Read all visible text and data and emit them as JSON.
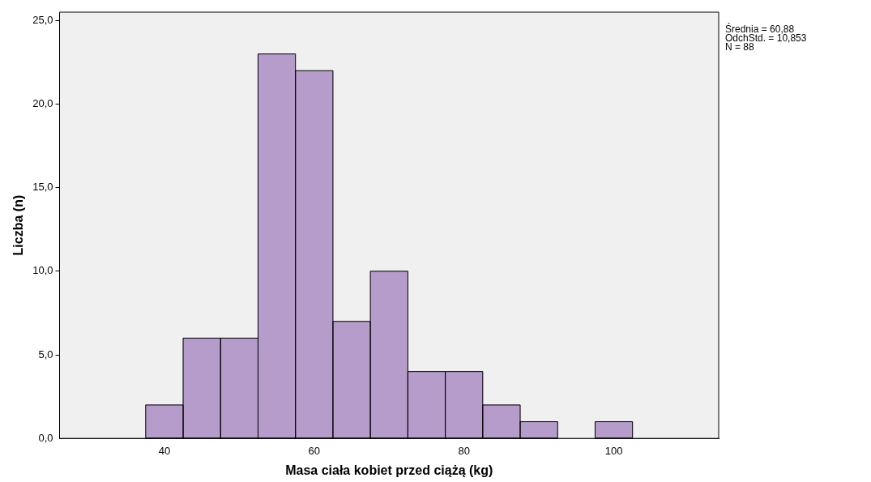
{
  "chart_data": {
    "type": "histogram",
    "xlabel": "Masa ciała kobiet przed ciążą (kg)",
    "ylabel": "Liczba (n)",
    "bins": [
      37.5,
      42.5,
      47.5,
      52.5,
      57.5,
      62.5,
      67.5,
      72.5,
      77.5,
      82.5,
      87.5,
      92.5,
      97.5,
      102.5
    ],
    "values": [
      2,
      6,
      6,
      23,
      22,
      7,
      10,
      4,
      4,
      2,
      1,
      0,
      1
    ],
    "color": "#b59ccb",
    "xlim": [
      26,
      114
    ],
    "xticks": [
      40,
      60,
      80,
      100
    ],
    "ylim": [
      0,
      25.5
    ],
    "yticks": [
      {
        "value": 0,
        "label": "0,0"
      },
      {
        "value": 5,
        "label": "5,0"
      },
      {
        "value": 10,
        "label": "10,0"
      },
      {
        "value": 15,
        "label": "15,0"
      },
      {
        "value": 20,
        "label": "20,0"
      },
      {
        "value": 25,
        "label": "25,0"
      }
    ],
    "grid": false,
    "legend": false,
    "annotations": [
      "Średnia = 60,88",
      "OdchStd. = 10,853",
      "N = 88"
    ]
  }
}
